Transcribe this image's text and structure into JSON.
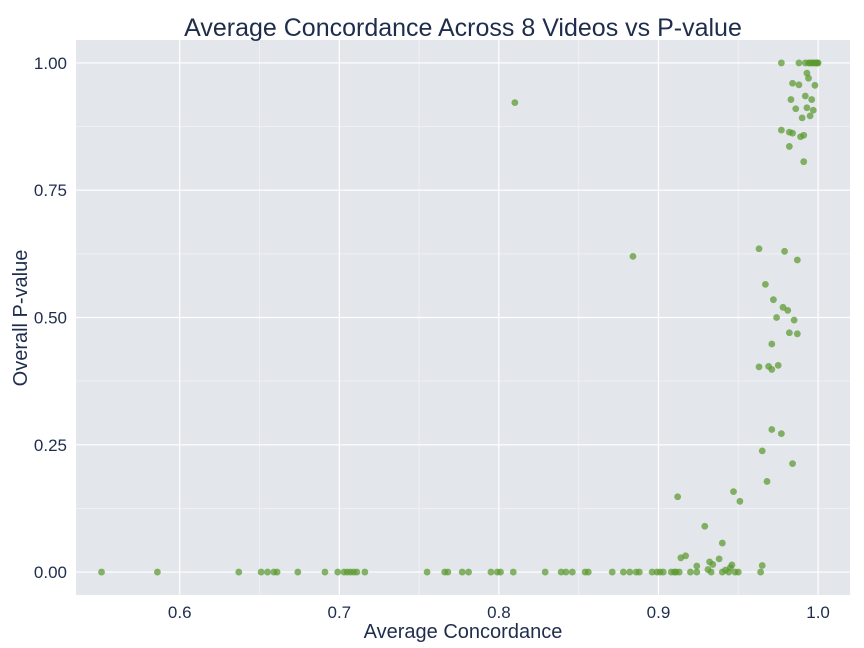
{
  "chart_data": {
    "type": "scatter",
    "title": "Average Concordance Across 8 Videos vs P-value",
    "xlabel": "Average Concordance",
    "ylabel": "Overall P-value",
    "xlim": [
      0.535,
      1.02
    ],
    "ylim": [
      -0.045,
      1.045
    ],
    "xticks": [
      0.6,
      0.7,
      0.8,
      0.9,
      1.0
    ],
    "xtick_labels": [
      "0.6",
      "0.7",
      "0.8",
      "0.9",
      "1.0"
    ],
    "yticks": [
      0.0,
      0.25,
      0.5,
      0.75,
      1.0
    ],
    "ytick_labels": [
      "0.00",
      "0.25",
      "0.50",
      "0.75",
      "1.00"
    ],
    "grid": true,
    "marker_color": "#5a9a2e",
    "background_color": "#e3e6eb",
    "series": [
      {
        "points": [
          [
            0.551,
            0.0
          ],
          [
            0.586,
            0.0
          ],
          [
            0.637,
            0.0
          ],
          [
            0.651,
            0.0
          ],
          [
            0.655,
            0.0
          ],
          [
            0.659,
            0.0
          ],
          [
            0.661,
            0.0
          ],
          [
            0.674,
            0.0
          ],
          [
            0.691,
            0.0
          ],
          [
            0.699,
            0.0
          ],
          [
            0.703,
            0.0
          ],
          [
            0.705,
            0.0
          ],
          [
            0.707,
            0.0
          ],
          [
            0.709,
            0.0
          ],
          [
            0.711,
            0.0
          ],
          [
            0.716,
            0.0
          ],
          [
            0.755,
            0.0
          ],
          [
            0.766,
            0.0
          ],
          [
            0.768,
            0.0
          ],
          [
            0.777,
            0.0
          ],
          [
            0.781,
            0.0
          ],
          [
            0.795,
            0.0
          ],
          [
            0.799,
            0.0
          ],
          [
            0.801,
            0.0
          ],
          [
            0.809,
            0.0
          ],
          [
            0.829,
            0.0
          ],
          [
            0.839,
            0.0
          ],
          [
            0.842,
            0.0
          ],
          [
            0.846,
            0.0
          ],
          [
            0.854,
            0.0
          ],
          [
            0.856,
            0.0
          ],
          [
            0.871,
            0.0
          ],
          [
            0.878,
            0.0
          ],
          [
            0.882,
            0.0
          ],
          [
            0.886,
            0.0
          ],
          [
            0.888,
            0.0
          ],
          [
            0.896,
            0.0
          ],
          [
            0.899,
            0.0
          ],
          [
            0.901,
            0.0
          ],
          [
            0.903,
            0.0
          ],
          [
            0.908,
            0.0
          ],
          [
            0.91,
            0.0
          ],
          [
            0.911,
            0.0
          ],
          [
            0.913,
            0.0
          ],
          [
            0.92,
            0.0
          ],
          [
            0.924,
            0.0
          ],
          [
            0.933,
            0.0
          ],
          [
            0.94,
            0.0
          ],
          [
            0.944,
            0.0
          ],
          [
            0.948,
            0.0
          ],
          [
            0.95,
            0.0
          ],
          [
            0.964,
            0.0
          ],
          [
            0.81,
            0.922
          ],
          [
            0.884,
            0.62
          ],
          [
            0.912,
            0.148
          ],
          [
            0.914,
            0.028
          ],
          [
            0.917,
            0.032
          ],
          [
            0.924,
            0.012
          ],
          [
            0.929,
            0.09
          ],
          [
            0.931,
            0.005
          ],
          [
            0.932,
            0.02
          ],
          [
            0.934,
            0.015
          ],
          [
            0.938,
            0.026
          ],
          [
            0.94,
            0.057
          ],
          [
            0.942,
            0.004
          ],
          [
            0.945,
            0.009
          ],
          [
            0.946,
            0.014
          ],
          [
            0.947,
            0.158
          ],
          [
            0.951,
            0.139
          ],
          [
            0.963,
            0.403
          ],
          [
            0.965,
            0.013
          ],
          [
            0.965,
            0.238
          ],
          [
            0.963,
            0.635
          ],
          [
            0.967,
            0.565
          ],
          [
            0.968,
            0.178
          ],
          [
            0.969,
            0.404
          ],
          [
            0.971,
            0.398
          ],
          [
            0.971,
            0.448
          ],
          [
            0.971,
            0.28
          ],
          [
            0.972,
            0.535
          ],
          [
            0.974,
            0.5
          ],
          [
            0.975,
            0.406
          ],
          [
            0.977,
            0.272
          ],
          [
            0.978,
            0.52
          ],
          [
            0.979,
            0.63
          ],
          [
            0.981,
            0.514
          ],
          [
            0.982,
            0.47
          ],
          [
            0.984,
            0.213
          ],
          [
            0.985,
            0.495
          ],
          [
            0.987,
            0.468
          ],
          [
            0.987,
            0.613
          ],
          [
            0.977,
            1.0
          ],
          [
            0.977,
            0.868
          ],
          [
            0.982,
            0.836
          ],
          [
            0.982,
            0.864
          ],
          [
            0.983,
            0.928
          ],
          [
            0.984,
            0.862
          ],
          [
            0.984,
            0.96
          ],
          [
            0.986,
            0.91
          ],
          [
            0.988,
            1.0
          ],
          [
            0.988,
            0.957
          ],
          [
            0.989,
            0.855
          ],
          [
            0.99,
            0.892
          ],
          [
            0.991,
            0.858
          ],
          [
            0.991,
            0.806
          ],
          [
            0.992,
            1.0
          ],
          [
            0.992,
            0.935
          ],
          [
            0.993,
            0.98
          ],
          [
            0.993,
            0.912
          ],
          [
            0.994,
            1.0
          ],
          [
            0.994,
            0.97
          ],
          [
            0.995,
            0.896
          ],
          [
            0.995,
            1.0
          ],
          [
            0.996,
            0.928
          ],
          [
            0.996,
            1.0
          ],
          [
            0.997,
            1.0
          ],
          [
            0.997,
            0.907
          ],
          [
            0.998,
            1.0
          ],
          [
            0.998,
            0.956
          ],
          [
            0.999,
            1.0
          ],
          [
            1.0,
            1.0
          ],
          [
            0.9995,
            1.0
          ]
        ]
      }
    ]
  }
}
